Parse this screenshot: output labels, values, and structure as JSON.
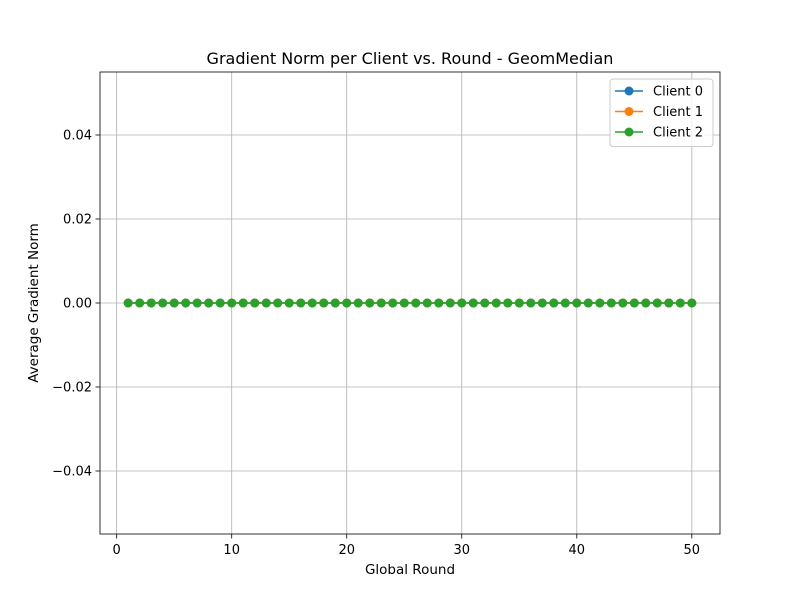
{
  "chart_data": {
    "type": "line",
    "title": "Gradient Norm per Client vs. Round - GeomMedian",
    "xlabel": "Global Round",
    "ylabel": "Average Gradient Norm",
    "xlim": [
      -1.45,
      52.45
    ],
    "ylim": [
      -0.055,
      0.055
    ],
    "xticks": [
      0,
      10,
      20,
      30,
      40,
      50
    ],
    "xtick_labels": [
      "0",
      "10",
      "20",
      "30",
      "40",
      "50"
    ],
    "yticks": [
      -0.04,
      -0.02,
      0.0,
      0.02,
      0.04
    ],
    "ytick_labels": [
      "−0.04",
      "−0.02",
      "0.00",
      "0.02",
      "0.04"
    ],
    "grid": true,
    "legend_position": "top-right",
    "x": [
      1,
      2,
      3,
      4,
      5,
      6,
      7,
      8,
      9,
      10,
      11,
      12,
      13,
      14,
      15,
      16,
      17,
      18,
      19,
      20,
      21,
      22,
      23,
      24,
      25,
      26,
      27,
      28,
      29,
      30,
      31,
      32,
      33,
      34,
      35,
      36,
      37,
      38,
      39,
      40,
      41,
      42,
      43,
      44,
      45,
      46,
      47,
      48,
      49,
      50
    ],
    "series": [
      {
        "name": "Client 0",
        "color": "#1f77b4",
        "values": [
          0,
          0,
          0,
          0,
          0,
          0,
          0,
          0,
          0,
          0,
          0,
          0,
          0,
          0,
          0,
          0,
          0,
          0,
          0,
          0,
          0,
          0,
          0,
          0,
          0,
          0,
          0,
          0,
          0,
          0,
          0,
          0,
          0,
          0,
          0,
          0,
          0,
          0,
          0,
          0,
          0,
          0,
          0,
          0,
          0,
          0,
          0,
          0,
          0,
          0
        ]
      },
      {
        "name": "Client 1",
        "color": "#ff7f0e",
        "values": [
          0,
          0,
          0,
          0,
          0,
          0,
          0,
          0,
          0,
          0,
          0,
          0,
          0,
          0,
          0,
          0,
          0,
          0,
          0,
          0,
          0,
          0,
          0,
          0,
          0,
          0,
          0,
          0,
          0,
          0,
          0,
          0,
          0,
          0,
          0,
          0,
          0,
          0,
          0,
          0,
          0,
          0,
          0,
          0,
          0,
          0,
          0,
          0,
          0,
          0
        ]
      },
      {
        "name": "Client 2",
        "color": "#2ca02c",
        "values": [
          0,
          0,
          0,
          0,
          0,
          0,
          0,
          0,
          0,
          0,
          0,
          0,
          0,
          0,
          0,
          0,
          0,
          0,
          0,
          0,
          0,
          0,
          0,
          0,
          0,
          0,
          0,
          0,
          0,
          0,
          0,
          0,
          0,
          0,
          0,
          0,
          0,
          0,
          0,
          0,
          0,
          0,
          0,
          0,
          0,
          0,
          0,
          0,
          0,
          0
        ]
      }
    ]
  }
}
